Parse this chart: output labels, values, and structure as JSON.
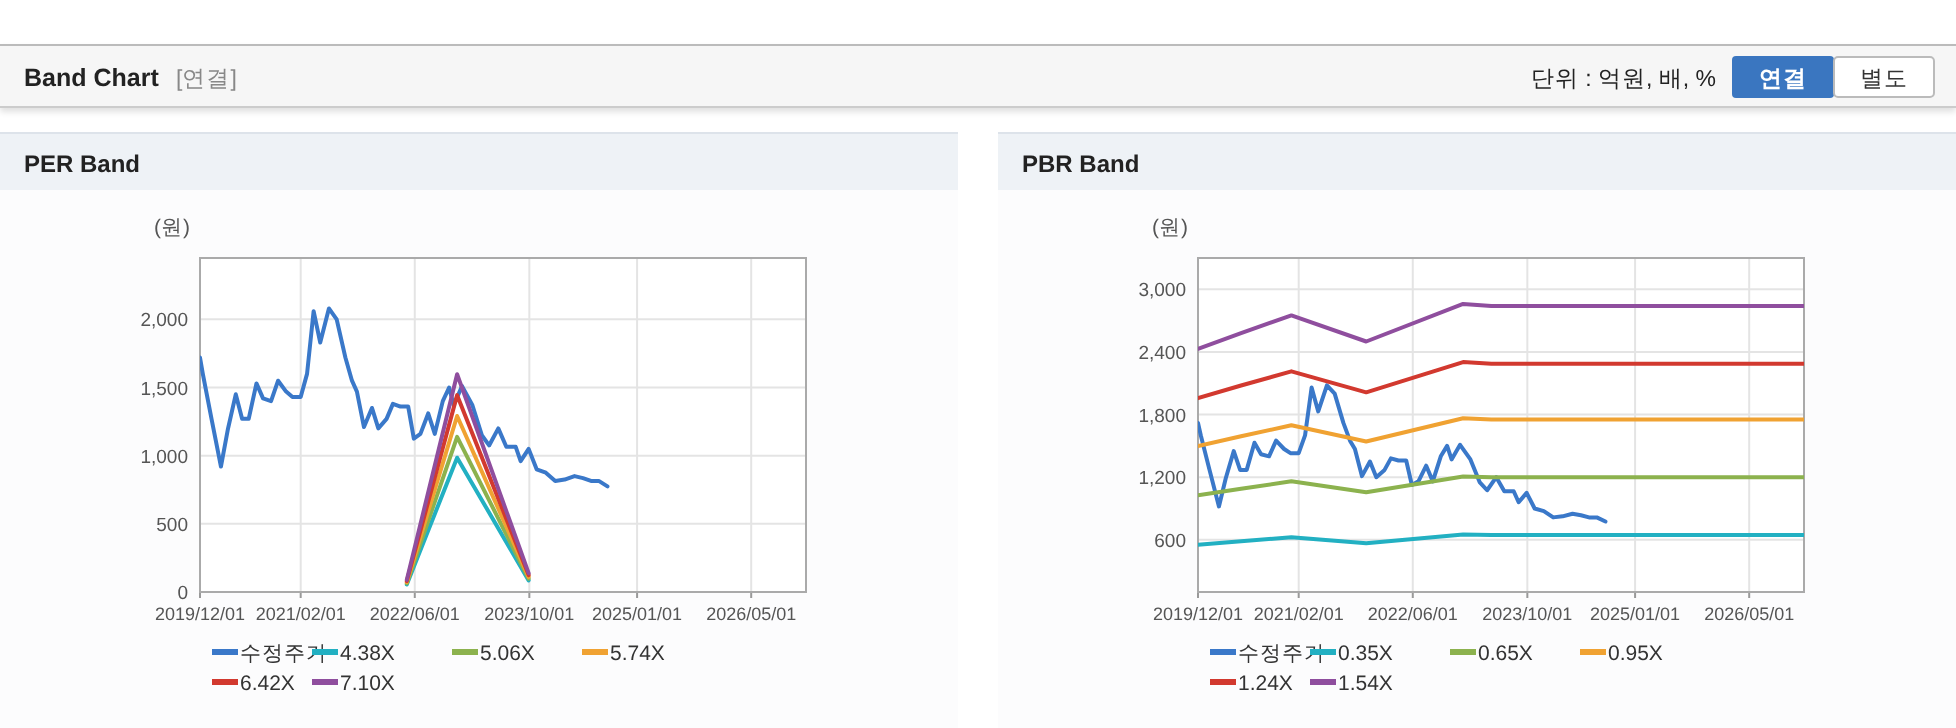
{
  "chart_data": [
    {
      "type": "other",
      "title": "Band Chart",
      "subtitle": "[연결]",
      "annotations": [
        "단위 : 억원, 배, %",
        "연결",
        "별도"
      ]
    },
    {
      "type": "line",
      "title": "PER Band",
      "ylabel": "(원)",
      "grid": true,
      "legend": "bottom",
      "marker": "none",
      "line_style": "solid",
      "xlim": [
        "2019-12-01",
        "2026-12-20"
      ],
      "ylim": [
        0,
        2450
      ],
      "xticks": [
        {
          "value": "2019-12-01",
          "label": "2019/12/01"
        },
        {
          "value": "2021-02-01",
          "label": "2021/02/01"
        },
        {
          "value": "2022-06-01",
          "label": "2022/06/01"
        },
        {
          "value": "2023-10-01",
          "label": "2023/10/01"
        },
        {
          "value": "2025-01-01",
          "label": "2025/01/01"
        },
        {
          "value": "2026-05-01",
          "label": "2026/05/01"
        }
      ],
      "yticks": [
        0,
        500,
        {
          "value": 1000,
          "label": "1,000"
        },
        {
          "value": 1500,
          "label": "1,500"
        },
        {
          "value": 2000,
          "label": "2,000"
        }
      ],
      "series": [
        {
          "name": "수정주가",
          "color": "#3a78c9",
          "x": [
            "2019-12-01",
            "2019-12-13",
            "2020-01-19",
            "2020-02-28",
            "2020-03-28",
            "2020-05-01",
            "2020-05-28",
            "2020-06-25",
            "2020-07-28",
            "2020-08-25",
            "2020-09-28",
            "2020-10-28",
            "2020-12-01",
            "2020-12-28",
            "2021-02-01",
            "2021-02-28",
            "2021-03-28",
            "2021-04-25",
            "2021-06-01",
            "2021-07-04",
            "2021-08-10",
            "2021-09-07",
            "2021-09-28",
            "2021-10-28",
            "2021-12-01",
            "2021-12-28",
            "2022-02-01",
            "2022-02-28",
            "2022-04-01",
            "2022-05-04",
            "2022-05-28",
            "2022-06-25",
            "2022-07-28",
            "2022-08-25",
            "2022-09-28",
            "2022-10-25",
            "2022-11-13",
            "2022-12-19",
            "2023-02-01",
            "2023-03-13",
            "2023-04-13",
            "2023-05-22",
            "2023-06-25",
            "2023-08-04",
            "2023-08-25",
            "2023-09-28",
            "2023-11-01",
            "2023-12-10",
            "2024-01-19",
            "2024-02-28",
            "2024-04-10",
            "2024-05-16",
            "2024-06-19",
            "2024-07-22",
            "2024-08-28"
          ],
          "values": [
            1720,
            1600,
            1270,
            920,
            1190,
            1450,
            1270,
            1270,
            1530,
            1420,
            1400,
            1550,
            1470,
            1430,
            1430,
            1600,
            2060,
            1830,
            2080,
            2000,
            1720,
            1550,
            1470,
            1210,
            1350,
            1200,
            1270,
            1380,
            1360,
            1360,
            1125,
            1160,
            1310,
            1160,
            1400,
            1500,
            1370,
            1510,
            1370,
            1150,
            1075,
            1200,
            1065,
            1065,
            960,
            1050,
            900,
            875,
            815,
            825,
            850,
            835,
            815,
            815,
            775
          ]
        },
        {
          "name": "4.38X",
          "color": "#22b0c2",
          "x": [
            "2022-04-28",
            "2022-11-28",
            "2023-09-28"
          ],
          "values": [
            55,
            985,
            85
          ]
        },
        {
          "name": "5.06X",
          "color": "#8cb24e",
          "x": [
            "2022-04-28",
            "2022-11-28",
            "2023-09-28"
          ],
          "values": [
            64,
            1138,
            98
          ]
        },
        {
          "name": "5.74X",
          "color": "#f0a232",
          "x": [
            "2022-04-28",
            "2022-11-28",
            "2023-09-28"
          ],
          "values": [
            72,
            1291,
            111
          ]
        },
        {
          "name": "6.42X",
          "color": "#d2392f",
          "x": [
            "2022-04-28",
            "2022-11-28",
            "2023-09-28"
          ],
          "values": [
            81,
            1444,
            124
          ]
        },
        {
          "name": "7.10X",
          "color": "#8f4e9e",
          "x": [
            "2022-04-28",
            "2022-11-28",
            "2023-09-28"
          ],
          "values": [
            89,
            1597,
            138
          ]
        }
      ]
    },
    {
      "type": "line",
      "title": "PBR Band",
      "ylabel": "(원)",
      "grid": true,
      "legend": "bottom",
      "marker": "none",
      "line_style": "solid",
      "xlim": [
        "2019-12-01",
        "2026-12-20"
      ],
      "ylim": [
        100,
        3300
      ],
      "xticks": [
        {
          "value": "2019-12-01",
          "label": "2019/12/01"
        },
        {
          "value": "2021-02-01",
          "label": "2021/02/01"
        },
        {
          "value": "2022-06-01",
          "label": "2022/06/01"
        },
        {
          "value": "2023-10-01",
          "label": "2023/10/01"
        },
        {
          "value": "2025-01-01",
          "label": "2025/01/01"
        },
        {
          "value": "2026-05-01",
          "label": "2026/05/01"
        }
      ],
      "yticks": [
        600,
        {
          "value": 1200,
          "label": "1,200"
        },
        {
          "value": 1800,
          "label": "1,800"
        },
        {
          "value": 2400,
          "label": "2,400"
        },
        {
          "value": 3000,
          "label": "3,000"
        }
      ],
      "series": [
        {
          "name": "수정주가",
          "color": "#3a78c9",
          "x": [
            "2019-12-01",
            "2019-12-13",
            "2020-01-19",
            "2020-02-28",
            "2020-03-28",
            "2020-05-01",
            "2020-05-28",
            "2020-06-25",
            "2020-07-28",
            "2020-08-25",
            "2020-09-28",
            "2020-10-28",
            "2020-12-01",
            "2020-12-28",
            "2021-02-01",
            "2021-02-28",
            "2021-03-28",
            "2021-04-25",
            "2021-06-01",
            "2021-07-04",
            "2021-08-10",
            "2021-09-07",
            "2021-09-28",
            "2021-10-28",
            "2021-12-01",
            "2021-12-28",
            "2022-02-01",
            "2022-02-28",
            "2022-04-01",
            "2022-05-04",
            "2022-05-28",
            "2022-06-25",
            "2022-07-28",
            "2022-08-25",
            "2022-09-28",
            "2022-10-25",
            "2022-11-13",
            "2022-12-19",
            "2023-02-01",
            "2023-03-13",
            "2023-04-13",
            "2023-05-22",
            "2023-06-25",
            "2023-08-04",
            "2023-08-25",
            "2023-09-28",
            "2023-11-01",
            "2023-12-10",
            "2024-01-19",
            "2024-02-28",
            "2024-04-10",
            "2024-05-16",
            "2024-06-19",
            "2024-07-22",
            "2024-08-28"
          ],
          "values": [
            1720,
            1600,
            1270,
            920,
            1190,
            1450,
            1270,
            1270,
            1530,
            1420,
            1400,
            1550,
            1470,
            1430,
            1430,
            1600,
            2060,
            1830,
            2080,
            2000,
            1720,
            1550,
            1470,
            1210,
            1350,
            1200,
            1270,
            1380,
            1360,
            1360,
            1125,
            1160,
            1310,
            1160,
            1400,
            1500,
            1370,
            1510,
            1370,
            1150,
            1075,
            1200,
            1065,
            1065,
            960,
            1050,
            900,
            875,
            815,
            825,
            850,
            835,
            815,
            815,
            775
          ]
        },
        {
          "name": "0.35X",
          "color": "#22b0c2",
          "x": [
            "2019-12-01",
            "2020-06-01",
            "2021-01-01",
            "2021-11-15",
            "2023-01-01",
            "2023-05-01",
            "2026-12-20"
          ],
          "values": [
            552,
            586,
            625,
            568,
            650,
            646,
            646
          ]
        },
        {
          "name": "0.65X",
          "color": "#8cb24e",
          "x": [
            "2019-12-01",
            "2020-06-01",
            "2021-01-01",
            "2021-11-15",
            "2023-01-01",
            "2023-05-01",
            "2026-12-20"
          ],
          "values": [
            1026,
            1089,
            1161,
            1055,
            1207,
            1199,
            1199
          ]
        },
        {
          "name": "0.95X",
          "color": "#f0a232",
          "x": [
            "2019-12-01",
            "2020-06-01",
            "2021-01-01",
            "2021-11-15",
            "2023-01-01",
            "2023-05-01",
            "2026-12-20"
          ],
          "values": [
            1499,
            1592,
            1697,
            1542,
            1765,
            1752,
            1752
          ]
        },
        {
          "name": "1.24X",
          "color": "#d2392f",
          "x": [
            "2019-12-01",
            "2020-06-01",
            "2021-01-01",
            "2021-11-15",
            "2023-01-01",
            "2023-05-01",
            "2026-12-20"
          ],
          "values": [
            1957,
            2078,
            2214,
            2013,
            2303,
            2287,
            2287
          ]
        },
        {
          "name": "1.54X",
          "color": "#8f4e9e",
          "x": [
            "2019-12-01",
            "2020-06-01",
            "2021-01-01",
            "2021-11-15",
            "2023-01-01",
            "2023-05-01",
            "2026-12-20"
          ],
          "values": [
            2430,
            2580,
            2750,
            2500,
            2860,
            2840,
            2840
          ]
        }
      ]
    }
  ]
}
